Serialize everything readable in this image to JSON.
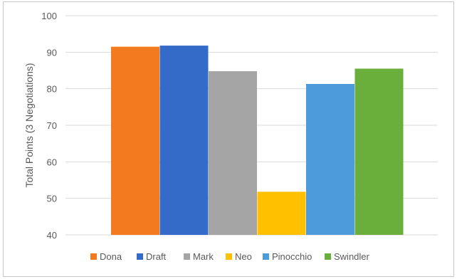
{
  "chart_data": {
    "type": "bar",
    "title": "",
    "xlabel": "",
    "ylabel": "Total Points (3 Negotiations)",
    "ylim": [
      40,
      100
    ],
    "yticks": [
      40,
      50,
      60,
      70,
      80,
      90,
      100
    ],
    "grid": true,
    "legend_position": "bottom",
    "categories": [
      ""
    ],
    "series": [
      {
        "name": "Dona",
        "values": [
          91.5
        ],
        "color": "#F47A20"
      },
      {
        "name": "Draft",
        "values": [
          91.8
        ],
        "color": "#346BC8"
      },
      {
        "name": "Mark",
        "values": [
          84.8
        ],
        "color": "#A5A5A5"
      },
      {
        "name": "Neo",
        "values": [
          51.8
        ],
        "color": "#FFC000"
      },
      {
        "name": "Pinocchio",
        "values": [
          81.3
        ],
        "color": "#4E9BDB"
      },
      {
        "name": "Swindler",
        "values": [
          85.5
        ],
        "color": "#6AAE3C"
      }
    ]
  }
}
